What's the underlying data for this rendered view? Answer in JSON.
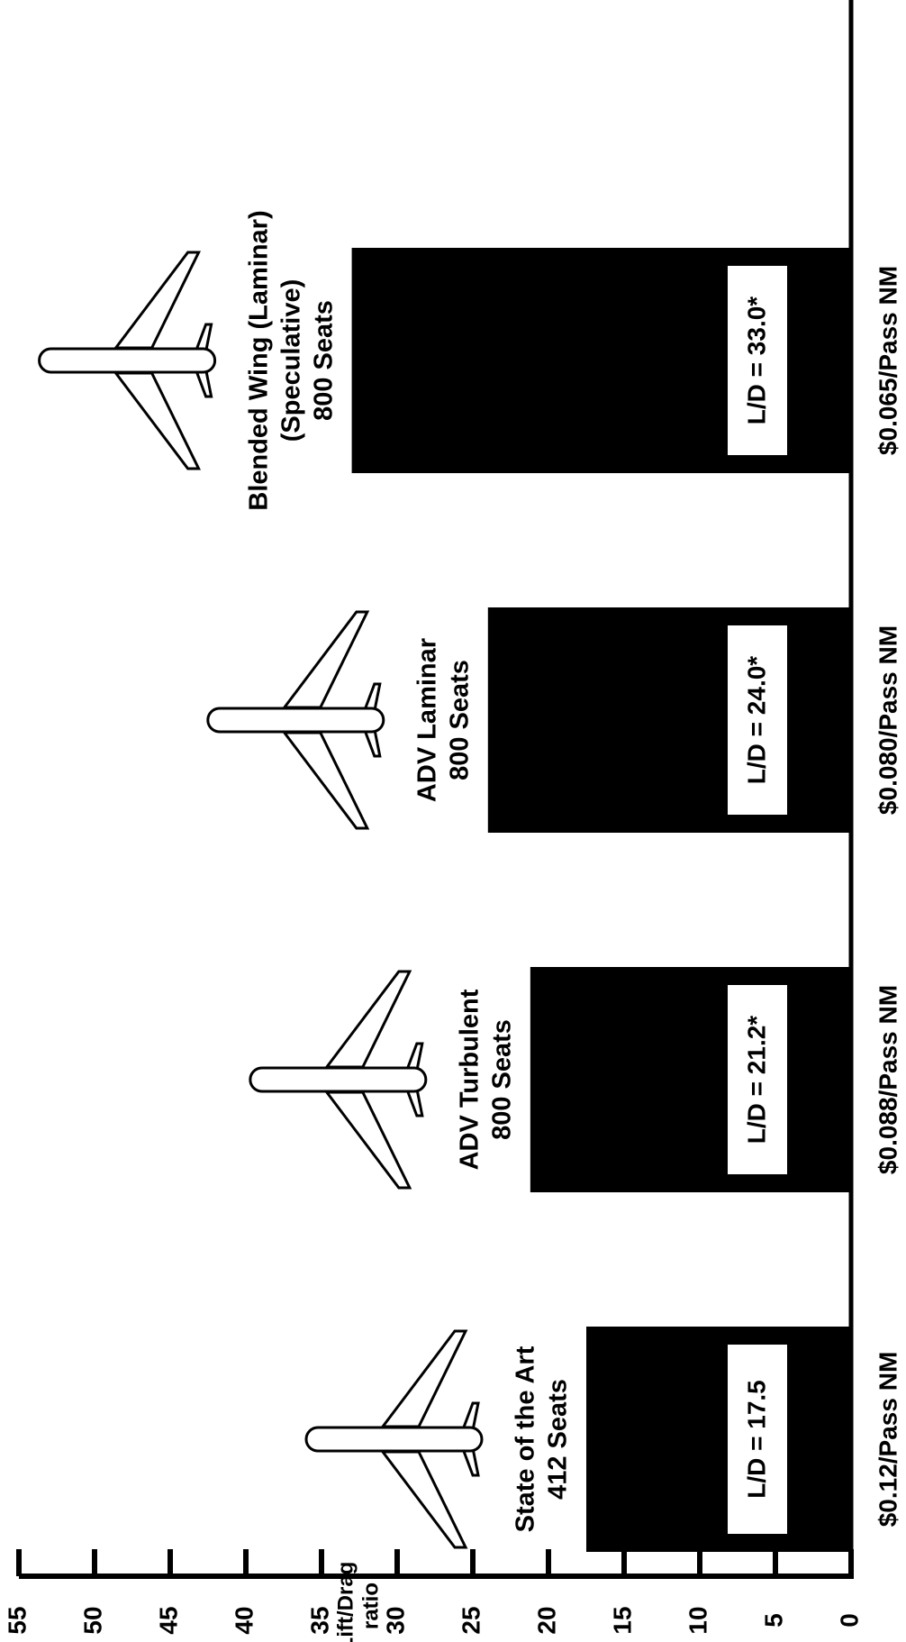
{
  "chart_data": {
    "type": "bar",
    "y_label": [
      "Lift/Drag",
      "ratio"
    ],
    "categories": [
      [
        "State of the Art",
        "412 Seats"
      ],
      [
        "ADV Turbulent",
        "800 Seats"
      ],
      [
        "ADV Laminar",
        "800 Seats"
      ],
      [
        "Blended Wing (Laminar)",
        "(Speculative)",
        "800 Seats"
      ]
    ],
    "values": [
      17.5,
      21.2,
      24.0,
      33.0
    ],
    "value_labels": [
      "L/D = 17.5",
      "L/D = 21.2*",
      "L/D = 24.0*",
      "L/D = 33.0*"
    ],
    "cost_labels": [
      "$0.12/Pass NM",
      "$0.088/Pass NM",
      "$0.080/Pass NM",
      "$0.065/Pass NM"
    ],
    "color": "#000000",
    "ylim": [
      0,
      55
    ],
    "yticks": [
      0,
      5,
      10,
      15,
      20,
      25,
      30,
      35,
      40,
      45,
      50,
      55
    ],
    "orientation": "rotated"
  }
}
